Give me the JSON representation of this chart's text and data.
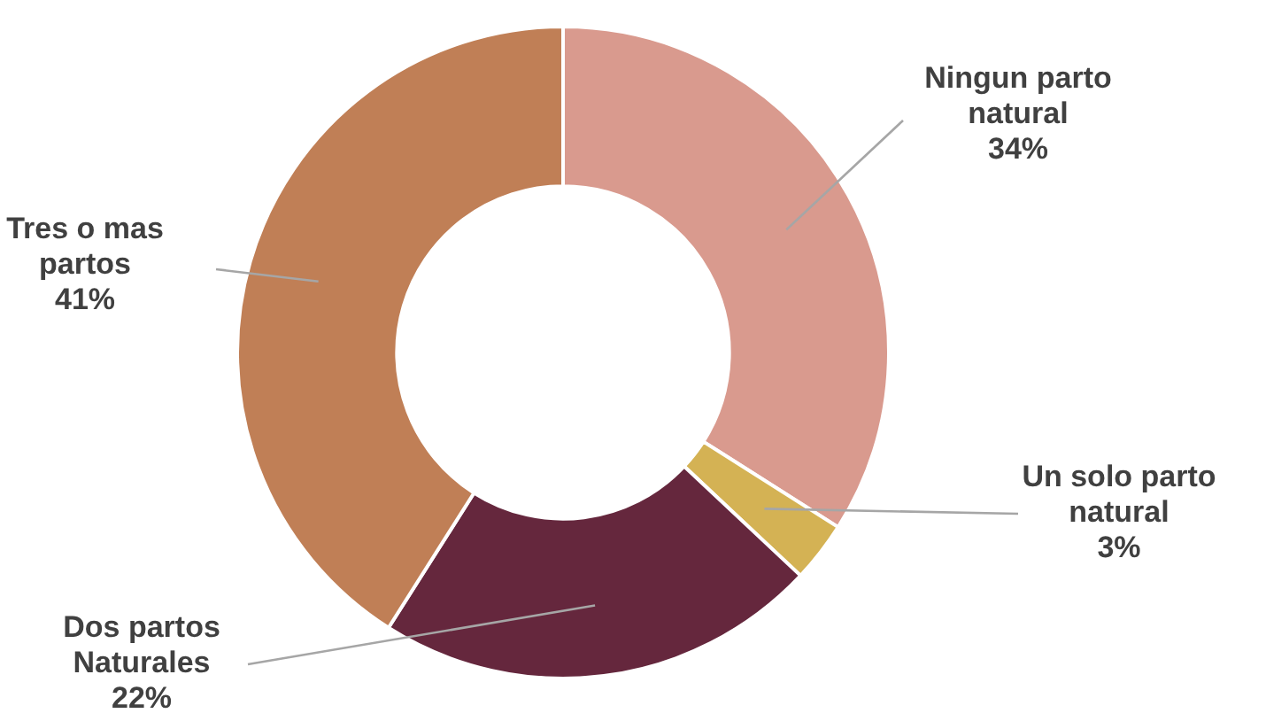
{
  "chart_data": {
    "type": "donut",
    "categories": [
      "Ningun parto natural",
      "Un solo parto natural",
      "Dos partos Naturales",
      "Tres o mas partos"
    ],
    "values": [
      34,
      3,
      22,
      41
    ],
    "value_labels": [
      "34%",
      "3%",
      "22%",
      "41%"
    ],
    "colors": [
      "#d99a8e",
      "#d4b254",
      "#65273d",
      "#c07f56"
    ],
    "legend": false
  }
}
